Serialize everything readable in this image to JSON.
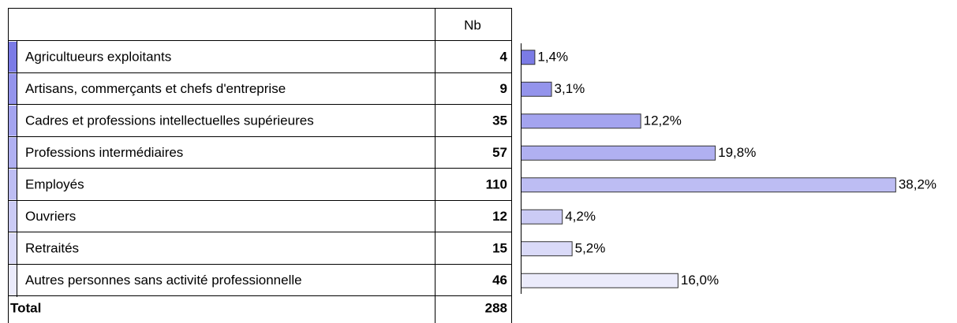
{
  "table": {
    "header": "Nb",
    "rows": [
      {
        "label": "Agricultueurs exploitants",
        "count": 4,
        "percent": {
          "value": 1.4,
          "label": "1,4%"
        },
        "color": "#7b7be6"
      },
      {
        "label": "Artisans, commerçants et chefs d'entreprise",
        "count": 9,
        "percent": {
          "value": 3.1,
          "label": "3,1%"
        },
        "color": "#9494ec"
      },
      {
        "label": "Cadres et professions intellectuelles supérieures",
        "count": 35,
        "percent": {
          "value": 12.2,
          "label": "12,2%"
        },
        "color": "#a4a4ef"
      },
      {
        "label": "Professions intermédiaires",
        "count": 57,
        "percent": {
          "value": 19.8,
          "label": "19,8%"
        },
        "color": "#b0b0f1"
      },
      {
        "label": "Employés",
        "count": 110,
        "percent": {
          "value": 38.2,
          "label": "38,2%"
        },
        "color": "#bdbdf3"
      },
      {
        "label": "Ouvriers",
        "count": 12,
        "percent": {
          "value": 4.2,
          "label": "4,2%"
        },
        "color": "#cbcbf5"
      },
      {
        "label": "Retraités",
        "count": 15,
        "percent": {
          "value": 5.2,
          "label": "5,2%"
        },
        "color": "#dadaf8"
      },
      {
        "label": "Autres personnes sans activité professionnelle",
        "count": 46,
        "percent": {
          "value": 16.0,
          "label": "16,0%"
        },
        "color": "#ebebfb"
      }
    ],
    "total": {
      "label": "Total",
      "count": 288
    }
  }
}
